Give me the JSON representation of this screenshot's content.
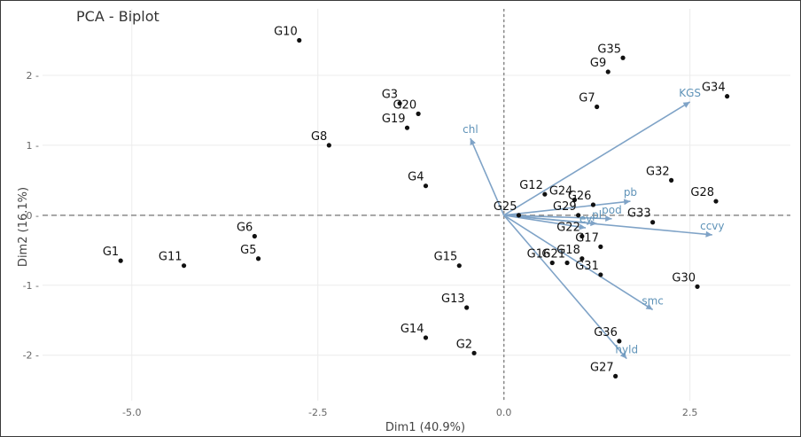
{
  "chart_data": {
    "type": "scatter",
    "title": "PCA - Biplot",
    "xlabel": "Dim1 (40.9%)",
    "ylabel": "Dim2 (16.1%)",
    "xlim": [
      -6.2,
      3.85
    ],
    "ylim": [
      -2.65,
      2.95
    ],
    "x_ticks": [
      -5.0,
      -2.5,
      0.0,
      2.5
    ],
    "x_tick_labels": [
      "-5.0",
      "-2.5",
      "0.0",
      "2.5"
    ],
    "y_ticks": [
      -2,
      -1,
      0,
      1,
      2
    ],
    "y_tick_labels": [
      "-2 -",
      "-1 -",
      "0 -",
      "1 -",
      "2 -"
    ],
    "grid": true,
    "colors": {
      "points": "#111111",
      "arrows": "#7fa3c7",
      "arrow_labels": "#5f93b8",
      "grid": "#ececec",
      "zero_lines": "#8a8a8a"
    },
    "points": [
      {
        "label": "G10",
        "x": -2.75,
        "y": 2.5
      },
      {
        "label": "G35",
        "x": 1.6,
        "y": 2.25
      },
      {
        "label": "G9",
        "x": 1.4,
        "y": 2.05
      },
      {
        "label": "G3",
        "x": -1.4,
        "y": 1.6
      },
      {
        "label": "G20",
        "x": -1.15,
        "y": 1.45
      },
      {
        "label": "G19",
        "x": -1.3,
        "y": 1.25
      },
      {
        "label": "G7",
        "x": 1.25,
        "y": 1.55
      },
      {
        "label": "G34",
        "x": 3.0,
        "y": 1.7
      },
      {
        "label": "G8",
        "x": -2.35,
        "y": 1.0
      },
      {
        "label": "G4",
        "x": -1.05,
        "y": 0.42
      },
      {
        "label": "G32",
        "x": 2.25,
        "y": 0.5
      },
      {
        "label": "G12",
        "x": 0.55,
        "y": 0.3
      },
      {
        "label": "G24",
        "x": 0.95,
        "y": 0.22
      },
      {
        "label": "G26",
        "x": 1.2,
        "y": 0.15
      },
      {
        "label": "G28",
        "x": 2.85,
        "y": 0.2
      },
      {
        "label": "G25",
        "x": 0.2,
        "y": 0.0
      },
      {
        "label": "G29",
        "x": 1.0,
        "y": 0.0
      },
      {
        "label": "G33",
        "x": 2.0,
        "y": -0.1
      },
      {
        "label": "G6",
        "x": -3.35,
        "y": -0.3
      },
      {
        "label": "G22",
        "x": 1.05,
        "y": -0.3
      },
      {
        "label": "G17",
        "x": 1.3,
        "y": -0.45
      },
      {
        "label": "G5",
        "x": -3.3,
        "y": -0.62
      },
      {
        "label": "G18",
        "x": 1.05,
        "y": -0.62
      },
      {
        "label": "G16",
        "x": 0.65,
        "y": -0.68
      },
      {
        "label": "G21",
        "x": 0.85,
        "y": -0.68
      },
      {
        "label": "G1",
        "x": -5.15,
        "y": -0.65
      },
      {
        "label": "G11",
        "x": -4.3,
        "y": -0.72
      },
      {
        "label": "G15",
        "x": -0.6,
        "y": -0.72
      },
      {
        "label": "G31",
        "x": 1.3,
        "y": -0.85
      },
      {
        "label": "G30",
        "x": 2.6,
        "y": -1.02
      },
      {
        "label": "G13",
        "x": -0.5,
        "y": -1.32
      },
      {
        "label": "G14",
        "x": -1.05,
        "y": -1.75
      },
      {
        "label": "G36",
        "x": 1.55,
        "y": -1.8
      },
      {
        "label": "G2",
        "x": -0.4,
        "y": -1.97
      },
      {
        "label": "G27",
        "x": 1.5,
        "y": -2.3
      }
    ],
    "variables": [
      {
        "label": "KGS",
        "x": 2.5,
        "y": 1.62
      },
      {
        "label": "chl",
        "x": -0.45,
        "y": 1.1
      },
      {
        "label": "pb",
        "x": 1.7,
        "y": 0.2
      },
      {
        "label": "pod",
        "x": 1.45,
        "y": -0.05
      },
      {
        "label": "pl",
        "x": 1.25,
        "y": -0.12
      },
      {
        "label": "ey",
        "x": 1.1,
        "y": -0.18
      },
      {
        "label": "ccvy",
        "x": 2.8,
        "y": -0.28
      },
      {
        "label": "smc",
        "x": 2.0,
        "y": -1.35
      },
      {
        "label": "hyld",
        "x": 1.65,
        "y": -2.05
      }
    ]
  }
}
